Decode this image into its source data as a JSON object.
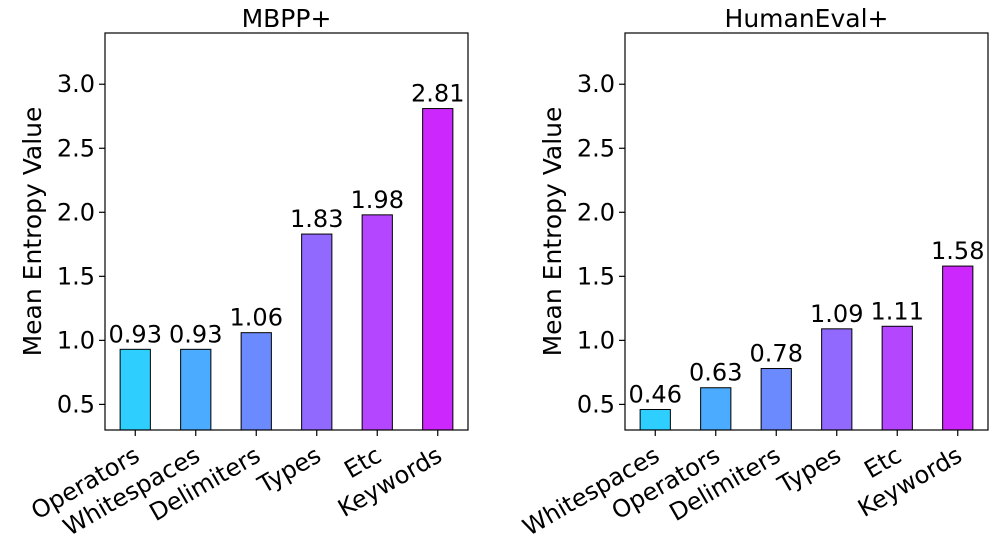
{
  "chart_data": [
    {
      "type": "bar",
      "title": "MBPP+",
      "ylabel": "Mean Entropy Value",
      "xlabel": "",
      "ylim": [
        0.3,
        3.4
      ],
      "yticks": [
        "0.5",
        "1.0",
        "1.5",
        "2.0",
        "2.5",
        "3.0"
      ],
      "categories": [
        "Operators",
        "Whitespaces",
        "Delimiters",
        "Types",
        "Etc",
        "Keywords"
      ],
      "values": [
        0.93,
        0.93,
        1.06,
        1.83,
        1.98,
        2.81
      ],
      "value_labels": [
        "0.93",
        "0.93",
        "1.06",
        "1.83",
        "1.98",
        "2.81"
      ],
      "colors": [
        "#2ecfff",
        "#4aabff",
        "#6b8afe",
        "#9169fe",
        "#b346fe",
        "#cc28fe"
      ]
    },
    {
      "type": "bar",
      "title": "HumanEval+",
      "ylabel": "Mean Entropy Value",
      "xlabel": "",
      "ylim": [
        0.3,
        3.4
      ],
      "yticks": [
        "0.5",
        "1.0",
        "1.5",
        "2.0",
        "2.5",
        "3.0"
      ],
      "categories": [
        "Whitespaces",
        "Operators",
        "Delimiters",
        "Types",
        "Etc",
        "Keywords"
      ],
      "values": [
        0.46,
        0.63,
        0.78,
        1.09,
        1.11,
        1.58
      ],
      "value_labels": [
        "0.46",
        "0.63",
        "0.78",
        "1.09",
        "1.11",
        "1.58"
      ],
      "colors": [
        "#2ecfff",
        "#4aabff",
        "#6b8afe",
        "#9169fe",
        "#b346fe",
        "#cc28fe"
      ]
    }
  ]
}
